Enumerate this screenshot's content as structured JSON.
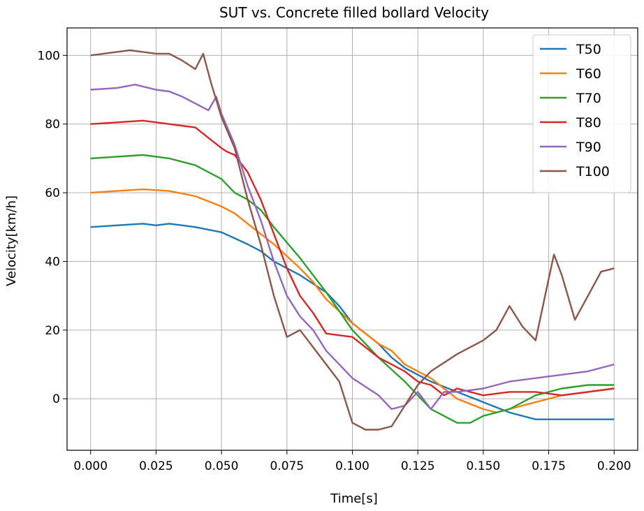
{
  "chart_data": {
    "type": "line",
    "title": "SUT vs. Concrete filled bollard Velocity",
    "xlabel": "Time[s]",
    "ylabel": "Velocity[km/h]",
    "xlim": [
      -0.009,
      0.209
    ],
    "ylim": [
      -15,
      108
    ],
    "xticks": [
      "0.000",
      "0.025",
      "0.050",
      "0.075",
      "0.100",
      "0.125",
      "0.150",
      "0.175",
      "0.200"
    ],
    "xtick_values": [
      0,
      0.025,
      0.05,
      0.075,
      0.1,
      0.125,
      0.15,
      0.175,
      0.2
    ],
    "yticks": [
      "0",
      "20",
      "40",
      "60",
      "80",
      "100"
    ],
    "ytick_values": [
      0,
      20,
      40,
      60,
      80,
      100
    ],
    "grid": true,
    "legend_position": "top-right",
    "series": [
      {
        "name": "T50",
        "color": "#1f77b4",
        "points": [
          [
            0,
            50
          ],
          [
            0.01,
            50.5
          ],
          [
            0.02,
            51
          ],
          [
            0.025,
            50.5
          ],
          [
            0.03,
            51
          ],
          [
            0.035,
            50.5
          ],
          [
            0.04,
            50
          ],
          [
            0.05,
            48.5
          ],
          [
            0.06,
            45
          ],
          [
            0.065,
            43
          ],
          [
            0.07,
            40
          ],
          [
            0.08,
            36
          ],
          [
            0.09,
            31
          ],
          [
            0.095,
            27
          ],
          [
            0.1,
            22
          ],
          [
            0.11,
            16
          ],
          [
            0.115,
            12
          ],
          [
            0.12,
            9
          ],
          [
            0.125,
            7
          ],
          [
            0.13,
            5
          ],
          [
            0.14,
            2
          ],
          [
            0.15,
            -1
          ],
          [
            0.16,
            -4
          ],
          [
            0.17,
            -6
          ],
          [
            0.18,
            -6
          ],
          [
            0.19,
            -6
          ],
          [
            0.2,
            -6
          ]
        ]
      },
      {
        "name": "T60",
        "color": "#ff7f0e",
        "points": [
          [
            0,
            60
          ],
          [
            0.01,
            60.5
          ],
          [
            0.02,
            61
          ],
          [
            0.03,
            60.5
          ],
          [
            0.04,
            59
          ],
          [
            0.05,
            56
          ],
          [
            0.055,
            54
          ],
          [
            0.06,
            51
          ],
          [
            0.07,
            45
          ],
          [
            0.08,
            38
          ],
          [
            0.085,
            34
          ],
          [
            0.09,
            29
          ],
          [
            0.1,
            22
          ],
          [
            0.11,
            16
          ],
          [
            0.115,
            14
          ],
          [
            0.12,
            10
          ],
          [
            0.13,
            6
          ],
          [
            0.14,
            0
          ],
          [
            0.15,
            -3
          ],
          [
            0.155,
            -4
          ],
          [
            0.16,
            -3
          ],
          [
            0.17,
            -1
          ],
          [
            0.18,
            1
          ],
          [
            0.19,
            2
          ],
          [
            0.2,
            3
          ]
        ]
      },
      {
        "name": "T70",
        "color": "#2ca02c",
        "points": [
          [
            0,
            70
          ],
          [
            0.01,
            70.5
          ],
          [
            0.02,
            71
          ],
          [
            0.03,
            70
          ],
          [
            0.04,
            68
          ],
          [
            0.045,
            66
          ],
          [
            0.05,
            64
          ],
          [
            0.055,
            60
          ],
          [
            0.06,
            58
          ],
          [
            0.065,
            55
          ],
          [
            0.07,
            50
          ],
          [
            0.08,
            41
          ],
          [
            0.09,
            31
          ],
          [
            0.1,
            20
          ],
          [
            0.11,
            12
          ],
          [
            0.12,
            5
          ],
          [
            0.13,
            -3
          ],
          [
            0.14,
            -7
          ],
          [
            0.145,
            -7
          ],
          [
            0.15,
            -5
          ],
          [
            0.16,
            -3
          ],
          [
            0.17,
            1
          ],
          [
            0.18,
            3
          ],
          [
            0.19,
            4
          ],
          [
            0.2,
            4
          ]
        ]
      },
      {
        "name": "T80",
        "color": "#d62728",
        "points": [
          [
            0,
            80
          ],
          [
            0.01,
            80.5
          ],
          [
            0.02,
            81
          ],
          [
            0.03,
            80
          ],
          [
            0.04,
            79
          ],
          [
            0.045,
            76
          ],
          [
            0.05,
            73
          ],
          [
            0.052,
            72
          ],
          [
            0.055,
            71
          ],
          [
            0.06,
            66
          ],
          [
            0.065,
            58
          ],
          [
            0.07,
            48
          ],
          [
            0.075,
            38
          ],
          [
            0.08,
            30
          ],
          [
            0.085,
            25
          ],
          [
            0.09,
            19
          ],
          [
            0.1,
            18
          ],
          [
            0.11,
            12
          ],
          [
            0.12,
            8
          ],
          [
            0.125,
            5
          ],
          [
            0.13,
            4
          ],
          [
            0.135,
            1
          ],
          [
            0.14,
            3
          ],
          [
            0.15,
            1
          ],
          [
            0.16,
            2
          ],
          [
            0.17,
            2
          ],
          [
            0.18,
            1
          ],
          [
            0.19,
            2
          ],
          [
            0.2,
            3
          ]
        ]
      },
      {
        "name": "T90",
        "color": "#9467bd",
        "points": [
          [
            0,
            90
          ],
          [
            0.01,
            90.5
          ],
          [
            0.017,
            91.5
          ],
          [
            0.025,
            90
          ],
          [
            0.03,
            89.5
          ],
          [
            0.035,
            88
          ],
          [
            0.04,
            86
          ],
          [
            0.045,
            84
          ],
          [
            0.048,
            88
          ],
          [
            0.05,
            83
          ],
          [
            0.055,
            74
          ],
          [
            0.06,
            62
          ],
          [
            0.065,
            52
          ],
          [
            0.07,
            40
          ],
          [
            0.075,
            30
          ],
          [
            0.08,
            24
          ],
          [
            0.085,
            20
          ],
          [
            0.09,
            14
          ],
          [
            0.1,
            6
          ],
          [
            0.11,
            1
          ],
          [
            0.115,
            -3
          ],
          [
            0.12,
            -2
          ],
          [
            0.125,
            2
          ],
          [
            0.13,
            -3
          ],
          [
            0.135,
            2
          ],
          [
            0.14,
            2
          ],
          [
            0.15,
            3
          ],
          [
            0.16,
            5
          ],
          [
            0.17,
            6
          ],
          [
            0.18,
            7
          ],
          [
            0.19,
            8
          ],
          [
            0.2,
            10
          ]
        ]
      },
      {
        "name": "T100",
        "color": "#8c564b",
        "points": [
          [
            0,
            100
          ],
          [
            0.01,
            101
          ],
          [
            0.015,
            101.5
          ],
          [
            0.02,
            101
          ],
          [
            0.025,
            100.5
          ],
          [
            0.03,
            100.5
          ],
          [
            0.035,
            98.5
          ],
          [
            0.04,
            96
          ],
          [
            0.043,
            100.5
          ],
          [
            0.046,
            92
          ],
          [
            0.05,
            82
          ],
          [
            0.055,
            73
          ],
          [
            0.06,
            58
          ],
          [
            0.065,
            45
          ],
          [
            0.07,
            30
          ],
          [
            0.075,
            18
          ],
          [
            0.08,
            20
          ],
          [
            0.085,
            15
          ],
          [
            0.09,
            10
          ],
          [
            0.095,
            5
          ],
          [
            0.1,
            -7
          ],
          [
            0.105,
            -9
          ],
          [
            0.11,
            -9
          ],
          [
            0.115,
            -8
          ],
          [
            0.12,
            -2
          ],
          [
            0.125,
            4
          ],
          [
            0.13,
            8
          ],
          [
            0.14,
            13
          ],
          [
            0.15,
            17
          ],
          [
            0.155,
            20
          ],
          [
            0.16,
            27
          ],
          [
            0.165,
            21
          ],
          [
            0.17,
            17
          ],
          [
            0.175,
            35
          ],
          [
            0.177,
            42
          ],
          [
            0.18,
            36
          ],
          [
            0.185,
            23
          ],
          [
            0.19,
            30
          ],
          [
            0.195,
            37
          ],
          [
            0.2,
            38
          ]
        ]
      }
    ]
  }
}
